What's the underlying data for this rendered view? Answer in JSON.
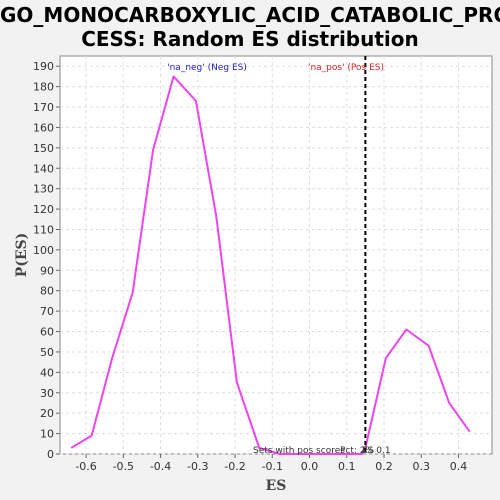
{
  "chart_data": {
    "type": "line",
    "title_line1": "GO_MONOCARBOXYLIC_ACID_CATABOLIC_PRO",
    "title_line2": "CESS: Random ES distribution",
    "xlabel": "ES",
    "ylabel": "P(ES)",
    "xlim": [
      -0.67,
      0.49
    ],
    "ylim": [
      0,
      195
    ],
    "x_ticks": [
      -0.6,
      -0.5,
      -0.4,
      -0.3,
      -0.2,
      -0.1,
      0.0,
      0.1,
      0.2,
      0.3,
      0.4
    ],
    "x_tick_labels": [
      "-0.6",
      "-0.5",
      "-0.4",
      "-0.3",
      "-0.2",
      "-0.1",
      "0.0",
      "0.1",
      "0.2",
      "0.3",
      "0.4"
    ],
    "y_ticks": [
      0,
      10,
      20,
      30,
      40,
      50,
      60,
      70,
      80,
      90,
      100,
      110,
      120,
      130,
      140,
      150,
      160,
      170,
      180,
      190
    ],
    "grid": true,
    "series": [
      {
        "color": "#ee44ee",
        "x": [
          -0.64,
          -0.585,
          -0.53,
          -0.475,
          -0.42,
          -0.365,
          -0.305,
          -0.25,
          -0.195,
          -0.135,
          -0.08,
          -0.025,
          0.03,
          0.085,
          0.14,
          0.15,
          0.205,
          0.26,
          0.32,
          0.375,
          0.43
        ],
        "y": [
          3,
          9,
          47,
          79,
          149,
          185,
          173,
          116,
          35,
          3,
          0,
          0,
          0,
          0,
          0,
          3,
          47,
          61,
          53,
          25,
          11
        ]
      }
    ],
    "es_marker": {
      "x": 0.15,
      "color": "#000000",
      "label": "ES 0.1"
    },
    "annotations": {
      "neg_label": "'na_neg' (Neg ES)",
      "neg_color": "#2222cc",
      "pos_label": "'na_pos' (Pos ES)",
      "pos_color": "#dd2222",
      "bottom_text": "Sets with pos scores",
      "bottom_pct": "Pct: 2%",
      "bottom_es": "ES 0.1"
    }
  }
}
